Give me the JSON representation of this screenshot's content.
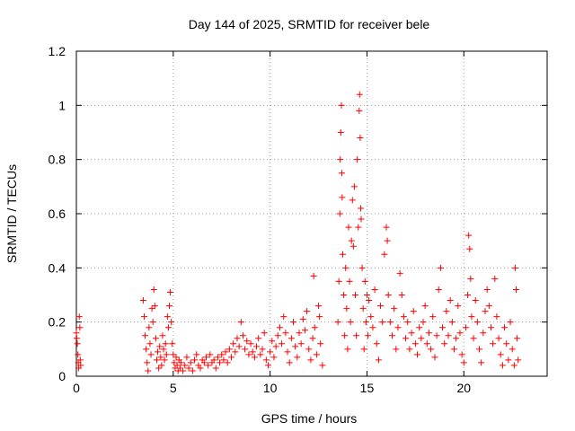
{
  "chart_data": {
    "type": "scatter",
    "title": "Day 144 of 2025, SRMTID for receiver bele",
    "xlabel": "GPS time / hours",
    "ylabel": "SRMTID / TECUs",
    "xlim": [
      0,
      24.3
    ],
    "ylim": [
      0,
      1.2
    ],
    "xticks": [
      {
        "value": 0,
        "label": "0"
      },
      {
        "value": 5,
        "label": "5"
      },
      {
        "value": 10,
        "label": "10"
      },
      {
        "value": 15,
        "label": "15"
      },
      {
        "value": 20,
        "label": "20"
      }
    ],
    "yticks": [
      {
        "value": 0,
        "label": "0"
      },
      {
        "value": 0.2,
        "label": "0.2"
      },
      {
        "value": 0.4,
        "label": "0.4"
      },
      {
        "value": 0.6,
        "label": "0.6"
      },
      {
        "value": 0.8,
        "label": "0.8"
      },
      {
        "value": 1.0,
        "label": "1"
      },
      {
        "value": 1.2,
        "label": "1.2"
      }
    ],
    "grid": true,
    "marker": "plus",
    "color": "#ff0000",
    "series": [
      {
        "name": "SRMTID",
        "points": [
          [
            0.0,
            0.16
          ],
          [
            0.02,
            0.14
          ],
          [
            0.05,
            0.12
          ],
          [
            0.08,
            0.08
          ],
          [
            0.1,
            0.05
          ],
          [
            0.12,
            0.03
          ],
          [
            0.15,
            0.22
          ],
          [
            0.18,
            0.18
          ],
          [
            0.2,
            0.06
          ],
          [
            0.22,
            0.04
          ],
          [
            3.45,
            0.28
          ],
          [
            3.5,
            0.22
          ],
          [
            3.55,
            0.15
          ],
          [
            3.6,
            0.1
          ],
          [
            3.65,
            0.05
          ],
          [
            3.7,
            0.02
          ],
          [
            3.75,
            0.18
          ],
          [
            3.8,
            0.12
          ],
          [
            3.85,
            0.08
          ],
          [
            3.9,
            0.25
          ],
          [
            3.95,
            0.2
          ],
          [
            4.0,
            0.32
          ],
          [
            4.05,
            0.26
          ],
          [
            4.1,
            0.14
          ],
          [
            4.15,
            0.06
          ],
          [
            4.2,
            0.09
          ],
          [
            4.25,
            0.03
          ],
          [
            4.3,
            0.11
          ],
          [
            4.35,
            0.07
          ],
          [
            4.4,
            0.04
          ],
          [
            4.45,
            0.15
          ],
          [
            4.5,
            0.1
          ],
          [
            4.55,
            0.06
          ],
          [
            4.6,
            0.12
          ],
          [
            4.65,
            0.08
          ],
          [
            4.7,
            0.22
          ],
          [
            4.75,
            0.18
          ],
          [
            4.8,
            0.26
          ],
          [
            4.85,
            0.31
          ],
          [
            4.9,
            0.2
          ],
          [
            4.95,
            0.12
          ],
          [
            5.0,
            0.08
          ],
          [
            5.05,
            0.05
          ],
          [
            5.1,
            0.03
          ],
          [
            5.15,
            0.07
          ],
          [
            5.2,
            0.04
          ],
          [
            5.25,
            0.02
          ],
          [
            5.3,
            0.06
          ],
          [
            5.35,
            0.03
          ],
          [
            5.4,
            0.05
          ],
          [
            5.5,
            0.02
          ],
          [
            5.6,
            0.04
          ],
          [
            5.7,
            0.07
          ],
          [
            5.8,
            0.03
          ],
          [
            5.9,
            0.05
          ],
          [
            6.0,
            0.02
          ],
          [
            6.1,
            0.06
          ],
          [
            6.2,
            0.08
          ],
          [
            6.3,
            0.04
          ],
          [
            6.4,
            0.03
          ],
          [
            6.5,
            0.06
          ],
          [
            6.6,
            0.05
          ],
          [
            6.7,
            0.07
          ],
          [
            6.8,
            0.04
          ],
          [
            6.9,
            0.08
          ],
          [
            7.0,
            0.05
          ],
          [
            7.1,
            0.06
          ],
          [
            7.2,
            0.03
          ],
          [
            7.3,
            0.07
          ],
          [
            7.4,
            0.05
          ],
          [
            7.5,
            0.08
          ],
          [
            7.6,
            0.06
          ],
          [
            7.7,
            0.09
          ],
          [
            7.8,
            0.05
          ],
          [
            7.9,
            0.1
          ],
          [
            8.0,
            0.07
          ],
          [
            8.1,
            0.12
          ],
          [
            8.2,
            0.09
          ],
          [
            8.3,
            0.14
          ],
          [
            8.4,
            0.11
          ],
          [
            8.5,
            0.2
          ],
          [
            8.6,
            0.15
          ],
          [
            8.7,
            0.1
          ],
          [
            8.8,
            0.13
          ],
          [
            8.9,
            0.08
          ],
          [
            9.0,
            0.12
          ],
          [
            9.1,
            0.09
          ],
          [
            9.2,
            0.07
          ],
          [
            9.3,
            0.11
          ],
          [
            9.4,
            0.14
          ],
          [
            9.5,
            0.08
          ],
          [
            9.6,
            0.1
          ],
          [
            9.7,
            0.16
          ],
          [
            9.8,
            0.06
          ],
          [
            9.9,
            0.04
          ],
          [
            10.0,
            0.09
          ],
          [
            10.1,
            0.13
          ],
          [
            10.2,
            0.07
          ],
          [
            10.3,
            0.11
          ],
          [
            10.4,
            0.15
          ],
          [
            10.5,
            0.18
          ],
          [
            10.6,
            0.12
          ],
          [
            10.7,
            0.22
          ],
          [
            10.8,
            0.16
          ],
          [
            10.9,
            0.09
          ],
          [
            11.0,
            0.05
          ],
          [
            11.1,
            0.14
          ],
          [
            11.2,
            0.2
          ],
          [
            11.3,
            0.11
          ],
          [
            11.4,
            0.07
          ],
          [
            11.5,
            0.16
          ],
          [
            11.6,
            0.12
          ],
          [
            11.7,
            0.21
          ],
          [
            11.8,
            0.17
          ],
          [
            11.9,
            0.24
          ],
          [
            12.0,
            0.1
          ],
          [
            12.1,
            0.06
          ],
          [
            12.2,
            0.14
          ],
          [
            12.25,
            0.37
          ],
          [
            12.3,
            0.18
          ],
          [
            12.4,
            0.08
          ],
          [
            12.5,
            0.26
          ],
          [
            12.55,
            0.22
          ],
          [
            12.6,
            0.12
          ],
          [
            12.7,
            0.04
          ],
          [
            13.5,
            0.2
          ],
          [
            13.55,
            0.35
          ],
          [
            13.6,
            0.6
          ],
          [
            13.62,
            0.8
          ],
          [
            13.65,
            0.9
          ],
          [
            13.68,
            1.0
          ],
          [
            13.7,
            0.75
          ],
          [
            13.72,
            0.66
          ],
          [
            13.75,
            0.45
          ],
          [
            13.8,
            0.3
          ],
          [
            13.85,
            0.15
          ],
          [
            13.9,
            0.4
          ],
          [
            13.95,
            0.25
          ],
          [
            14.0,
            0.1
          ],
          [
            14.05,
            0.55
          ],
          [
            14.1,
            0.35
          ],
          [
            14.15,
            0.2
          ],
          [
            14.2,
            0.5
          ],
          [
            14.25,
            0.65
          ],
          [
            14.3,
            0.48
          ],
          [
            14.35,
            0.7
          ],
          [
            14.4,
            0.3
          ],
          [
            14.45,
            0.15
          ],
          [
            14.5,
            0.8
          ],
          [
            14.55,
            0.55
          ],
          [
            14.6,
            0.98
          ],
          [
            14.62,
            1.04
          ],
          [
            14.65,
            0.88
          ],
          [
            14.68,
            0.62
          ],
          [
            14.7,
            0.58
          ],
          [
            14.75,
            0.4
          ],
          [
            14.8,
            0.25
          ],
          [
            14.85,
            0.1
          ],
          [
            14.9,
            0.35
          ],
          [
            14.95,
            0.2
          ],
          [
            15.0,
            0.3
          ],
          [
            15.05,
            0.15
          ],
          [
            15.1,
            0.28
          ],
          [
            15.2,
            0.22
          ],
          [
            15.3,
            0.18
          ],
          [
            15.4,
            0.32
          ],
          [
            15.5,
            0.12
          ],
          [
            15.6,
            0.06
          ],
          [
            15.7,
            0.26
          ],
          [
            15.8,
            0.2
          ],
          [
            15.9,
            0.45
          ],
          [
            16.0,
            0.55
          ],
          [
            16.05,
            0.5
          ],
          [
            16.1,
            0.3
          ],
          [
            16.2,
            0.2
          ],
          [
            16.3,
            0.15
          ],
          [
            16.4,
            0.25
          ],
          [
            16.5,
            0.1
          ],
          [
            16.6,
            0.18
          ],
          [
            16.7,
            0.38
          ],
          [
            16.8,
            0.3
          ],
          [
            16.9,
            0.22
          ],
          [
            17.0,
            0.14
          ],
          [
            17.1,
            0.2
          ],
          [
            17.2,
            0.1
          ],
          [
            17.3,
            0.16
          ],
          [
            17.4,
            0.24
          ],
          [
            17.5,
            0.12
          ],
          [
            17.6,
            0.08
          ],
          [
            17.7,
            0.18
          ],
          [
            17.8,
            0.14
          ],
          [
            17.9,
            0.2
          ],
          [
            18.0,
            0.26
          ],
          [
            18.1,
            0.12
          ],
          [
            18.2,
            0.16
          ],
          [
            18.3,
            0.1
          ],
          [
            18.4,
            0.22
          ],
          [
            18.5,
            0.07
          ],
          [
            18.6,
            0.15
          ],
          [
            18.7,
            0.32
          ],
          [
            18.8,
            0.4
          ],
          [
            18.9,
            0.18
          ],
          [
            19.0,
            0.12
          ],
          [
            19.1,
            0.24
          ],
          [
            19.2,
            0.15
          ],
          [
            19.3,
            0.28
          ],
          [
            19.4,
            0.2
          ],
          [
            19.5,
            0.1
          ],
          [
            19.6,
            0.14
          ],
          [
            19.7,
            0.26
          ],
          [
            19.8,
            0.16
          ],
          [
            19.9,
            0.08
          ],
          [
            20.0,
            0.05
          ],
          [
            20.1,
            0.18
          ],
          [
            20.2,
            0.3
          ],
          [
            20.25,
            0.52
          ],
          [
            20.3,
            0.47
          ],
          [
            20.35,
            0.36
          ],
          [
            20.4,
            0.22
          ],
          [
            20.5,
            0.14
          ],
          [
            20.6,
            0.28
          ],
          [
            20.7,
            0.2
          ],
          [
            20.8,
            0.1
          ],
          [
            20.9,
            0.05
          ],
          [
            21.0,
            0.16
          ],
          [
            21.1,
            0.24
          ],
          [
            21.2,
            0.32
          ],
          [
            21.3,
            0.26
          ],
          [
            21.4,
            0.18
          ],
          [
            21.5,
            0.12
          ],
          [
            21.6,
            0.36
          ],
          [
            21.7,
            0.22
          ],
          [
            21.8,
            0.14
          ],
          [
            21.9,
            0.08
          ],
          [
            22.0,
            0.04
          ],
          [
            22.1,
            0.18
          ],
          [
            22.2,
            0.12
          ],
          [
            22.3,
            0.06
          ],
          [
            22.4,
            0.2
          ],
          [
            22.5,
            0.1
          ],
          [
            22.6,
            0.04
          ],
          [
            22.65,
            0.4
          ],
          [
            22.7,
            0.32
          ],
          [
            22.75,
            0.14
          ],
          [
            22.8,
            0.06
          ]
        ]
      }
    ]
  }
}
